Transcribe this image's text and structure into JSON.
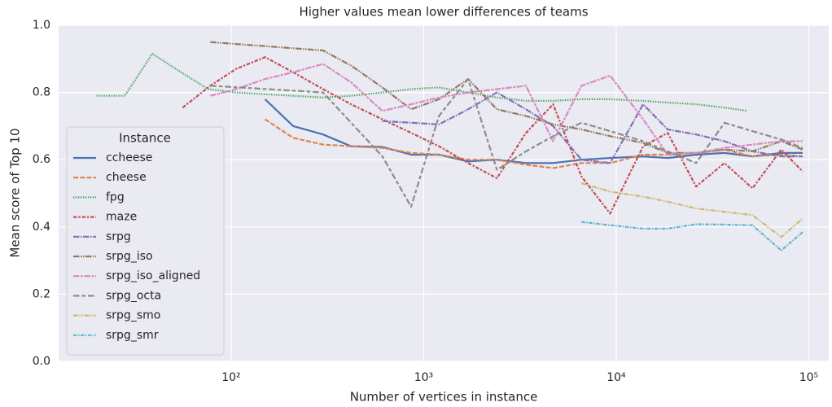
{
  "chart_data": {
    "type": "line",
    "title": "Higher values mean lower differences of teams",
    "x_label": "Number of vertices in instance",
    "y_label": "Mean score of Top 10",
    "x_log": true,
    "grid": true,
    "xlim": [
      12.7,
      127000
    ],
    "ylim": [
      0,
      1
    ],
    "xticks": [
      {
        "value": 100,
        "label": "10²"
      },
      {
        "value": 1000,
        "label": "10³"
      },
      {
        "value": 10000,
        "label": "10⁴"
      },
      {
        "value": 100000,
        "label": "10⁵"
      }
    ],
    "yticks": [
      {
        "value": 0,
        "label": "0.0"
      },
      {
        "value": 0.2,
        "label": "0.2"
      },
      {
        "value": 0.4,
        "label": "0.4"
      },
      {
        "value": 0.6,
        "label": "0.6"
      },
      {
        "value": 0.8,
        "label": "0.8"
      },
      {
        "value": 1,
        "label": "1.0"
      }
    ],
    "legend_title": "Instance",
    "legend_position": "lower left",
    "series": [
      {
        "name": "ccheese",
        "color": "#4c72b0",
        "dash": "none",
        "x": [
          150,
          210,
          300,
          420,
          610,
          860,
          1200,
          1700,
          2400,
          3400,
          4700,
          6600,
          9300,
          13800,
          18500,
          26000,
          36500,
          51000,
          72000,
          93000
        ],
        "values": [
          0.78,
          0.7,
          0.675,
          0.64,
          0.638,
          0.615,
          0.615,
          0.595,
          0.6,
          0.59,
          0.59,
          0.6,
          0.605,
          0.61,
          0.605,
          0.615,
          0.62,
          0.61,
          0.62,
          0.62
        ]
      },
      {
        "name": "cheese",
        "color": "#dd8452",
        "dash": "6 2.25",
        "x": [
          150,
          210,
          300,
          420,
          610,
          860,
          1200,
          1700,
          2400,
          3400,
          4700,
          6600,
          9300,
          13800,
          18500,
          26000,
          36500,
          51000,
          72000,
          93000
        ],
        "values": [
          0.72,
          0.665,
          0.645,
          0.64,
          0.635,
          0.62,
          0.615,
          0.6,
          0.6,
          0.585,
          0.575,
          0.59,
          0.59,
          0.615,
          0.615,
          0.62,
          0.63,
          0.61,
          0.615,
          0.61
        ]
      },
      {
        "name": "fpg",
        "color": "#55a868",
        "dash": "1.5 1.5",
        "x": [
          20,
          28,
          39,
          55,
          76,
          106,
          150,
          210,
          300,
          420,
          610,
          860,
          1200,
          1700,
          2400,
          3400,
          4700,
          6600,
          9300,
          13800,
          18500,
          26000,
          36500,
          48000
        ],
        "values": [
          0.79,
          0.79,
          0.915,
          0.86,
          0.81,
          0.8,
          0.795,
          0.79,
          0.785,
          0.79,
          0.8,
          0.81,
          0.815,
          0.8,
          0.785,
          0.775,
          0.775,
          0.78,
          0.78,
          0.775,
          0.77,
          0.765,
          0.755,
          0.745
        ]
      },
      {
        "name": "maze",
        "color": "#c44e52",
        "dash": "4.5 1.9 2.25 1.9",
        "x": [
          56,
          78,
          106,
          150,
          210,
          300,
          420,
          610,
          860,
          1200,
          1700,
          2400,
          3400,
          4700,
          6600,
          9300,
          13800,
          18500,
          26000,
          36500,
          51000,
          72000,
          93000
        ],
        "values": [
          0.755,
          0.82,
          0.87,
          0.905,
          0.86,
          0.81,
          0.765,
          0.72,
          0.68,
          0.64,
          0.59,
          0.545,
          0.68,
          0.765,
          0.55,
          0.44,
          0.64,
          0.68,
          0.52,
          0.59,
          0.515,
          0.63,
          0.565
        ]
      },
      {
        "name": "srpg",
        "color": "#8172b3",
        "dash": "7.5 1.5 1.5 1.5",
        "x": [
          610,
          1200,
          1700,
          2400,
          3400,
          4700,
          6600,
          9300,
          13800,
          18500,
          26000,
          36500,
          51000,
          72000,
          93000
        ],
        "values": [
          0.715,
          0.705,
          0.75,
          0.8,
          0.75,
          0.7,
          0.6,
          0.59,
          0.765,
          0.69,
          0.675,
          0.655,
          0.625,
          0.61,
          0.61
        ]
      },
      {
        "name": "srpg_iso",
        "color": "#937860",
        "dash": "7.5 1.5 1.5 1.5 1.5 1.5",
        "x": [
          78,
          300,
          420,
          610,
          860,
          1200,
          1700,
          2400,
          3400,
          4700,
          6600,
          9300,
          13800,
          18500,
          26000,
          36500,
          51000,
          72000,
          93000
        ],
        "values": [
          0.95,
          0.925,
          0.88,
          0.815,
          0.75,
          0.78,
          0.84,
          0.75,
          0.73,
          0.705,
          0.69,
          0.67,
          0.65,
          0.62,
          0.62,
          0.63,
          0.625,
          0.655,
          0.63
        ]
      },
      {
        "name": "srpg_iso_aligned",
        "color": "#da8bc3",
        "dash": "7.5 1.5 3 1.5",
        "x": [
          78,
          106,
          150,
          210,
          300,
          420,
          610,
          860,
          1200,
          1700,
          2400,
          3400,
          4700,
          6600,
          9300,
          13800,
          18500,
          26000,
          36500,
          51000,
          72000,
          93000
        ],
        "values": [
          0.79,
          0.81,
          0.84,
          0.86,
          0.885,
          0.83,
          0.745,
          0.765,
          0.785,
          0.8,
          0.81,
          0.82,
          0.655,
          0.82,
          0.85,
          0.72,
          0.615,
          0.62,
          0.635,
          0.645,
          0.655,
          0.655
        ]
      },
      {
        "name": "srpg_octa",
        "color": "#8c8c8c",
        "dash": "7.5 3 4.5 3",
        "x": [
          78,
          300,
          420,
          610,
          860,
          1200,
          1700,
          2400,
          3400,
          4700,
          6600,
          9300,
          13800,
          18500,
          26000,
          36500,
          51000,
          72000,
          93000
        ],
        "values": [
          0.82,
          0.8,
          0.71,
          0.61,
          0.46,
          0.73,
          0.84,
          0.57,
          0.625,
          0.67,
          0.71,
          0.685,
          0.655,
          0.625,
          0.59,
          0.71,
          0.685,
          0.66,
          0.635
        ]
      },
      {
        "name": "srpg_smo",
        "color": "#ccb974",
        "dash": "6 1.5 1.5 1.5 1.5 1.5",
        "x": [
          6600,
          9300,
          13800,
          18500,
          26000,
          36500,
          51000,
          72000,
          93000
        ],
        "values": [
          0.53,
          0.505,
          0.49,
          0.475,
          0.455,
          0.445,
          0.435,
          0.37,
          0.425
        ]
      },
      {
        "name": "srpg_smr",
        "color": "#64b5cd",
        "dash": "4.5 1.5 1.5 1.5",
        "x": [
          6600,
          9300,
          13800,
          18500,
          26000,
          36500,
          51000,
          72000,
          93000
        ],
        "values": [
          0.415,
          0.405,
          0.395,
          0.395,
          0.408,
          0.407,
          0.405,
          0.33,
          0.385
        ]
      }
    ]
  }
}
